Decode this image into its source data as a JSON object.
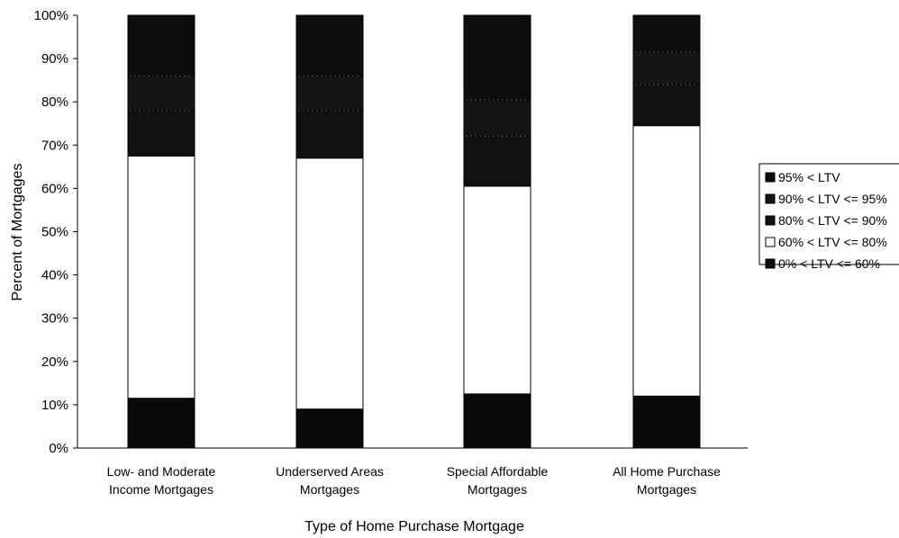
{
  "chart_data": {
    "type": "bar",
    "stacked": true,
    "xlabel": "Type of Home Purchase Mortgage",
    "ylabel": "Percent of Mortgages",
    "ylim": [
      0,
      100
    ],
    "yticks": [
      "0%",
      "10%",
      "20%",
      "30%",
      "40%",
      "50%",
      "60%",
      "70%",
      "80%",
      "90%",
      "100%"
    ],
    "categories": [
      [
        "Low- and Moderate",
        "Income Mortgages"
      ],
      [
        "Underserved Areas",
        "Mortgages"
      ],
      [
        "Special Affordable",
        "Mortgages"
      ],
      [
        "All Home Purchase",
        "Mortgages"
      ]
    ],
    "series": [
      {
        "name": "0% < LTV <= 60%",
        "color": "#0a0a0a",
        "values": [
          11.5,
          9,
          12.5,
          12
        ]
      },
      {
        "name": "60% < LTV <= 80%",
        "color": "#ffffff",
        "values": [
          56,
          58,
          48,
          62.5
        ]
      },
      {
        "name": "80% < LTV <= 90%",
        "color": "#111111",
        "values": [
          10.5,
          11,
          11.5,
          9.5
        ]
      },
      {
        "name": "90% < LTV <= 95%",
        "color": "#151515",
        "values": [
          8,
          8,
          8.5,
          7.5
        ]
      },
      {
        "name": "95% < LTV",
        "color": "#0d0d0d",
        "values": [
          14,
          14,
          19.5,
          8.5
        ]
      }
    ],
    "legend_order": [
      4,
      3,
      2,
      1,
      0
    ],
    "legend_placement": "right",
    "grid": false
  }
}
